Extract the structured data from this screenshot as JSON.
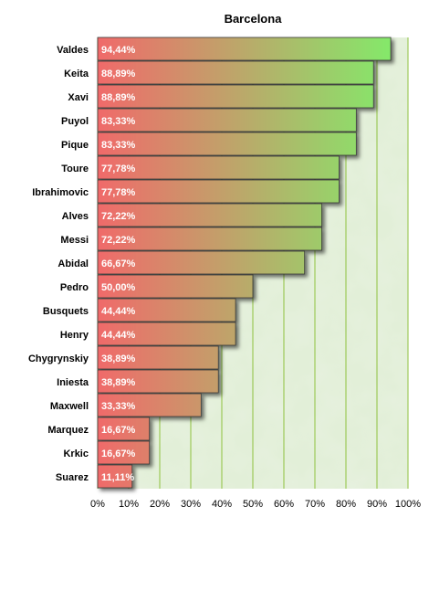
{
  "chart_data": {
    "type": "bar",
    "orientation": "horizontal",
    "title": "Barcelona",
    "xlabel": "",
    "ylabel": "",
    "xlim": [
      0,
      100
    ],
    "x_ticks": [
      "0%",
      "10%",
      "20%",
      "30%",
      "40%",
      "50%",
      "60%",
      "70%",
      "80%",
      "90%",
      "100%"
    ],
    "categories": [
      "Valdes",
      "Keita",
      "Xavi",
      "Puyol",
      "Pique",
      "Toure",
      "Ibrahimovic",
      "Alves",
      "Messi",
      "Abidal",
      "Pedro",
      "Busquets",
      "Henry",
      "Chygrynskiy",
      "Iniesta",
      "Maxwell",
      "Marquez",
      "Krkic",
      "Suarez"
    ],
    "values": [
      94.44,
      88.89,
      88.89,
      83.33,
      83.33,
      77.78,
      77.78,
      72.22,
      72.22,
      66.67,
      50.0,
      44.44,
      44.44,
      38.89,
      38.89,
      33.33,
      16.67,
      16.67,
      11.11
    ],
    "value_labels": [
      "94,44%",
      "88,89%",
      "88,89%",
      "83,33%",
      "83,33%",
      "77,78%",
      "77,78%",
      "72,22%",
      "72,22%",
      "66,67%",
      "50,00%",
      "44,44%",
      "44,44%",
      "38,89%",
      "38,89%",
      "33,33%",
      "16,67%",
      "16,67%",
      "11,11%"
    ],
    "grid": true,
    "legend": "none",
    "colors": {
      "bar_low": "#f06a6a",
      "bar_high": "#7ef06a",
      "grid": "#8fc23f",
      "plot_bg": "#dcebcf"
    }
  }
}
